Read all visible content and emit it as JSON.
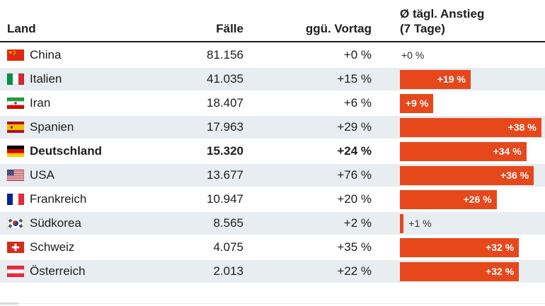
{
  "header": {
    "land": "Land",
    "faelle": "Fälle",
    "ggue_vortag": "ggü. Vortag",
    "avg_line1": "Ø tägl. Anstieg",
    "avg_line2": "(7 Tage)"
  },
  "colors": {
    "bar_orange": "#e6481c",
    "row_alt_bg": "#e7edf0",
    "header_rule": "#1d1d1b",
    "text": "#1d1d1b"
  },
  "rows": [
    {
      "country": "China",
      "flag_icon": "flag-china",
      "cases": "81.156",
      "vs_prev": "+0 %",
      "avg_label": "+0 %",
      "avg_value": 0,
      "emphasis": false
    },
    {
      "country": "Italien",
      "flag_icon": "flag-italy",
      "cases": "41.035",
      "vs_prev": "+15 %",
      "avg_label": "+19 %",
      "avg_value": 19,
      "emphasis": false
    },
    {
      "country": "Iran",
      "flag_icon": "flag-iran",
      "cases": "18.407",
      "vs_prev": "+6 %",
      "avg_label": "+9 %",
      "avg_value": 9,
      "emphasis": false
    },
    {
      "country": "Spanien",
      "flag_icon": "flag-spain",
      "cases": "17.963",
      "vs_prev": "+29 %",
      "avg_label": "+38 %",
      "avg_value": 38,
      "emphasis": false
    },
    {
      "country": "Deutschland",
      "flag_icon": "flag-germany",
      "cases": "15.320",
      "vs_prev": "+24 %",
      "avg_label": "+34 %",
      "avg_value": 34,
      "emphasis": true
    },
    {
      "country": "USA",
      "flag_icon": "flag-usa",
      "cases": "13.677",
      "vs_prev": "+76 %",
      "avg_label": "+36 %",
      "avg_value": 36,
      "emphasis": false
    },
    {
      "country": "Frankreich",
      "flag_icon": "flag-france",
      "cases": "10.947",
      "vs_prev": "+20 %",
      "avg_label": "+26 %",
      "avg_value": 26,
      "emphasis": false
    },
    {
      "country": "Südkorea",
      "flag_icon": "flag-southkorea",
      "cases": "8.565",
      "vs_prev": "+2 %",
      "avg_label": "+1 %",
      "avg_value": 1,
      "emphasis": false
    },
    {
      "country": "Schweiz",
      "flag_icon": "flag-switzerland",
      "cases": "4.075",
      "vs_prev": "+35 %",
      "avg_label": "+32 %",
      "avg_value": 32,
      "emphasis": false
    },
    {
      "country": "Österreich",
      "flag_icon": "flag-austria",
      "cases": "2.013",
      "vs_prev": "+22 %",
      "avg_label": "+32 %",
      "avg_value": 32,
      "emphasis": false
    }
  ],
  "chart_data": {
    "type": "table",
    "title": "",
    "columns": [
      "Land",
      "Fälle",
      "ggü. Vortag",
      "Ø tägl. Anstieg (7 Tage)"
    ],
    "rows": [
      [
        "China",
        81156,
        0,
        0
      ],
      [
        "Italien",
        41035,
        15,
        19
      ],
      [
        "Iran",
        18407,
        6,
        9
      ],
      [
        "Spanien",
        17963,
        29,
        38
      ],
      [
        "Deutschland",
        15320,
        24,
        34
      ],
      [
        "USA",
        13677,
        76,
        36
      ],
      [
        "Frankreich",
        10947,
        20,
        26
      ],
      [
        "Südkorea",
        8565,
        2,
        1
      ],
      [
        "Schweiz",
        4075,
        35,
        32
      ],
      [
        "Österreich",
        2013,
        22,
        32
      ]
    ],
    "bar_column": {
      "column": "Ø tägl. Anstieg (7 Tage)",
      "unit": "%",
      "type": "bar",
      "color": "#e6481c",
      "axis_max": 39,
      "labels_inside_from": 9
    },
    "emphasized_row": "Deutschland",
    "legend_position": "none",
    "grid": false
  }
}
